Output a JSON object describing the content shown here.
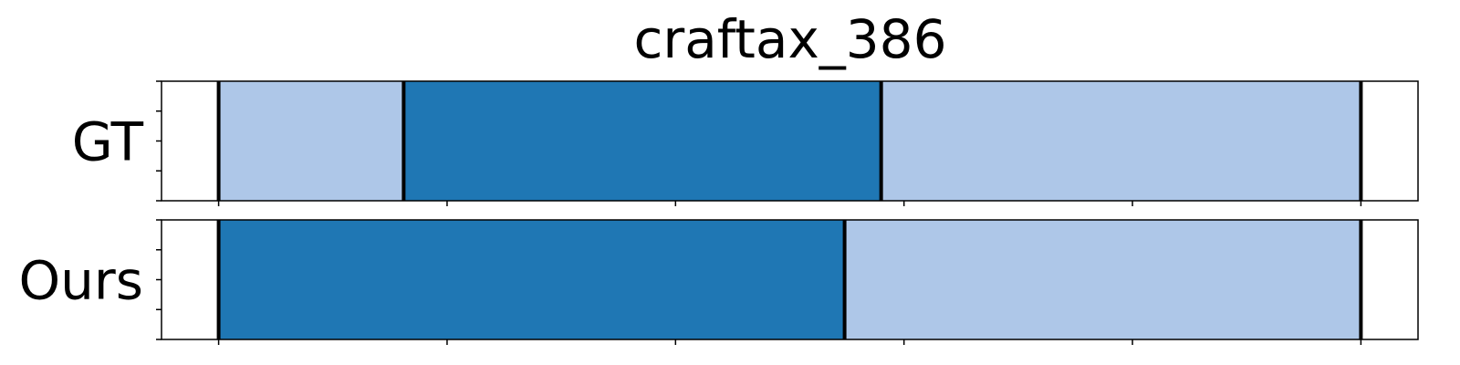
{
  "chart_data": {
    "type": "bar",
    "title": "craftax_386",
    "xlim": [
      0,
      5.5
    ],
    "x_ticks": [
      0.25,
      1.25,
      2.25,
      3.25,
      4.25,
      5.25
    ],
    "x_tick_labels_shown": false,
    "y_ticks_per_row": 5,
    "grid": false,
    "legend": "none",
    "rows": [
      {
        "label": "GT",
        "segments": [
          {
            "start": 0.25,
            "end": 1.06,
            "color": "#aec7e8"
          },
          {
            "start": 1.06,
            "end": 3.15,
            "color": "#1f77b4"
          },
          {
            "start": 3.15,
            "end": 5.25,
            "color": "#aec7e8"
          }
        ],
        "boundaries": [
          0.25,
          1.06,
          3.15,
          5.25
        ]
      },
      {
        "label": "Ours",
        "segments": [
          {
            "start": 0.25,
            "end": 2.99,
            "color": "#1f77b4"
          },
          {
            "start": 2.99,
            "end": 5.25,
            "color": "#aec7e8"
          }
        ],
        "boundaries": [
          0.25,
          2.99,
          5.25
        ]
      }
    ]
  }
}
